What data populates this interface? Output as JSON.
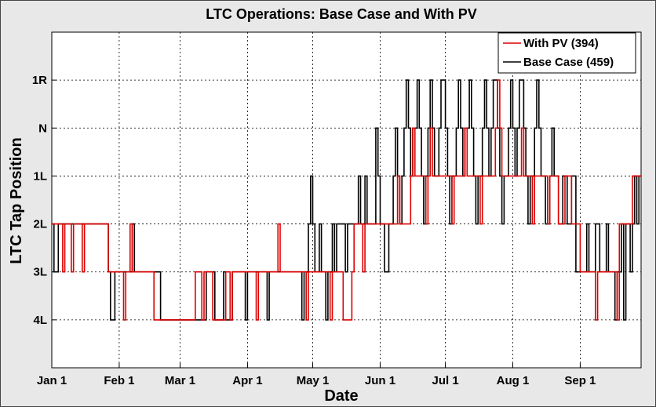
{
  "chart_data": {
    "type": "line",
    "title": "LTC Operations: Base Case and With PV",
    "xlabel": "Date",
    "ylabel": "LTC Tap Position",
    "x_tick_labels": [
      "Jan 1",
      "Feb 1",
      "Mar 1",
      "Apr 1",
      "May 1",
      "Jun 1",
      "Jul 1",
      "Aug 1",
      "Sep 1"
    ],
    "y_tick_labels": [
      "4L",
      "3L",
      "2L",
      "1L",
      "N",
      "1R"
    ],
    "y_levels": [
      -4,
      -3,
      -2,
      -1,
      0,
      1
    ],
    "ylim": [
      -5,
      2
    ],
    "xlim": [
      "Jan 1",
      "Sep 29"
    ],
    "grid": true,
    "legend_position": "top-right",
    "colors": {
      "with_pv": "#e00000",
      "base_case": "#000000"
    },
    "series": [
      {
        "name": "With PV (394)",
        "color": "#e00000",
        "steps": [
          [
            "Jan 1",
            -2
          ],
          [
            "Jan 6",
            -3
          ],
          [
            "Jan 7",
            -2
          ],
          [
            "Jan 10",
            -3
          ],
          [
            "Jan 11",
            -2
          ],
          [
            "Jan 15",
            -3
          ],
          [
            "Jan 16",
            -2
          ],
          [
            "Jan 27",
            -3
          ],
          [
            "Feb 3",
            -4
          ],
          [
            "Feb 4",
            -3
          ],
          [
            "Feb 6",
            -2
          ],
          [
            "Feb 7",
            -3
          ],
          [
            "Feb 14",
            -3
          ],
          [
            "Feb 17",
            -4
          ],
          [
            "Mar 8",
            -3
          ],
          [
            "Mar 11",
            -4
          ],
          [
            "Mar 12",
            -3
          ],
          [
            "Mar 16",
            -4
          ],
          [
            "Mar 22",
            -3
          ],
          [
            "Mar 24",
            -4
          ],
          [
            "Mar 25",
            -3
          ],
          [
            "Mar 31",
            -3
          ],
          [
            "Apr 5",
            -4
          ],
          [
            "Apr 6",
            -3
          ],
          [
            "Apr 14",
            -3
          ],
          [
            "Apr 15",
            -2
          ],
          [
            "Apr 16",
            -3
          ],
          [
            "Apr 28",
            -4
          ],
          [
            "Apr 29",
            -3
          ],
          [
            "May 3",
            -3
          ],
          [
            "May 9",
            -4
          ],
          [
            "May 10",
            -3
          ],
          [
            "May 15",
            -4
          ],
          [
            "May 19",
            -3
          ],
          [
            "May 20",
            -2
          ],
          [
            "May 24",
            -3
          ],
          [
            "May 25",
            -2
          ],
          [
            "Jun 1",
            -2
          ],
          [
            "Jun 9",
            -1
          ],
          [
            "Jun 10",
            -2
          ],
          [
            "Jun 15",
            -1
          ],
          [
            "Jun 16",
            0
          ],
          [
            "Jun 17",
            -1
          ],
          [
            "Jun 22",
            -2
          ],
          [
            "Jun 23",
            -1
          ],
          [
            "Jun 24",
            0
          ],
          [
            "Jun 25",
            -1
          ],
          [
            "Jul 1",
            -1
          ],
          [
            "Jul 4",
            -2
          ],
          [
            "Jul 5",
            -1
          ],
          [
            "Jul 10",
            0
          ],
          [
            "Jul 11",
            -1
          ],
          [
            "Jul 17",
            -2
          ],
          [
            "Jul 18",
            -1
          ],
          [
            "Jul 24",
            0
          ],
          [
            "Jul 25",
            1
          ],
          [
            "Jul 26",
            0
          ],
          [
            "Jul 27",
            -1
          ],
          [
            "Aug 1",
            -1
          ],
          [
            "Aug 5",
            0
          ],
          [
            "Aug 6",
            -1
          ],
          [
            "Aug 10",
            -2
          ],
          [
            "Aug 11",
            -1
          ],
          [
            "Aug 17",
            -2
          ],
          [
            "Aug 18",
            -1
          ],
          [
            "Aug 22",
            -2
          ],
          [
            "Aug 25",
            -1
          ],
          [
            "Aug 28",
            -2
          ],
          [
            "Sep 1",
            -3
          ],
          [
            "Sep 8",
            -4
          ],
          [
            "Sep 9",
            -3
          ],
          [
            "Sep 14",
            -3
          ],
          [
            "Sep 18",
            -4
          ],
          [
            "Sep 19",
            -2
          ],
          [
            "Sep 25",
            -1
          ],
          [
            "Sep 29",
            -1
          ]
        ]
      },
      {
        "name": "Base Case (459)",
        "color": "#000000",
        "steps": [
          [
            "Jan 1",
            -2
          ],
          [
            "Jan 2",
            -3
          ],
          [
            "Jan 4",
            -2
          ],
          [
            "Jan 27",
            -3
          ],
          [
            "Jan 28",
            -4
          ],
          [
            "Jan 30",
            -3
          ],
          [
            "Feb 5",
            -3
          ],
          [
            "Feb 7",
            -2
          ],
          [
            "Feb 8",
            -3
          ],
          [
            "Feb 20",
            -4
          ],
          [
            "Mar 13",
            -3
          ],
          [
            "Mar 16",
            -3
          ],
          [
            "Mar 17",
            -4
          ],
          [
            "Mar 21",
            -3
          ],
          [
            "Mar 22",
            -4
          ],
          [
            "Mar 25",
            -3
          ],
          [
            "Mar 29",
            -3
          ],
          [
            "Mar 31",
            -4
          ],
          [
            "Apr 1",
            -3
          ],
          [
            "Apr 9",
            -3
          ],
          [
            "Apr 10",
            -4
          ],
          [
            "Apr 11",
            -3
          ],
          [
            "Apr 20",
            -3
          ],
          [
            "Apr 25",
            -3
          ],
          [
            "Apr 26",
            -4
          ],
          [
            "Apr 27",
            -3
          ],
          [
            "Apr 29",
            -2
          ],
          [
            "Apr 30",
            -1
          ],
          [
            "May 1",
            -2
          ],
          [
            "May 2",
            -3
          ],
          [
            "May 4",
            -2
          ],
          [
            "May 5",
            -3
          ],
          [
            "May 7",
            -4
          ],
          [
            "May 8",
            -3
          ],
          [
            "May 10",
            -2
          ],
          [
            "May 11",
            -3
          ],
          [
            "May 12",
            -2
          ],
          [
            "May 16",
            -3
          ],
          [
            "May 17",
            -2
          ],
          [
            "May 22",
            -1
          ],
          [
            "May 23",
            -2
          ],
          [
            "May 25",
            -1
          ],
          [
            "May 26",
            -2
          ],
          [
            "May 30",
            0
          ],
          [
            "May 31",
            -1
          ],
          [
            "Jun 1",
            -2
          ],
          [
            "Jun 3",
            -3
          ],
          [
            "Jun 5",
            -2
          ],
          [
            "Jun 7",
            -1
          ],
          [
            "Jun 8",
            0
          ],
          [
            "Jun 9",
            -1
          ],
          [
            "Jun 10",
            -2
          ],
          [
            "Jun 11",
            -1
          ],
          [
            "Jun 12",
            0
          ],
          [
            "Jun 13",
            1
          ],
          [
            "Jun 14",
            0
          ],
          [
            "Jun 15",
            -1
          ],
          [
            "Jun 16",
            0
          ],
          [
            "Jun 18",
            1
          ],
          [
            "Jun 19",
            0
          ],
          [
            "Jun 20",
            -1
          ],
          [
            "Jun 21",
            -2
          ],
          [
            "Jun 22",
            -1
          ],
          [
            "Jun 23",
            0
          ],
          [
            "Jun 24",
            1
          ],
          [
            "Jun 25",
            0
          ],
          [
            "Jun 26",
            -1
          ],
          [
            "Jun 28",
            0
          ],
          [
            "Jun 29",
            1
          ],
          [
            "Jul 1",
            0
          ],
          [
            "Jul 2",
            -1
          ],
          [
            "Jul 3",
            -2
          ],
          [
            "Jul 4",
            -1
          ],
          [
            "Jul 6",
            0
          ],
          [
            "Jul 7",
            1
          ],
          [
            "Jul 8",
            0
          ],
          [
            "Jul 9",
            -1
          ],
          [
            "Jul 10",
            0
          ],
          [
            "Jul 12",
            1
          ],
          [
            "Jul 13",
            0
          ],
          [
            "Jul 14",
            -1
          ],
          [
            "Jul 15",
            -2
          ],
          [
            "Jul 16",
            -1
          ],
          [
            "Jul 18",
            0
          ],
          [
            "Jul 19",
            1
          ],
          [
            "Jul 20",
            0
          ],
          [
            "Jul 21",
            -1
          ],
          [
            "Jul 22",
            0
          ],
          [
            "Jul 23",
            1
          ],
          [
            "Jul 25",
            0
          ],
          [
            "Jul 26",
            -1
          ],
          [
            "Jul 27",
            -2
          ],
          [
            "Jul 28",
            -1
          ],
          [
            "Jul 30",
            0
          ],
          [
            "Jul 31",
            1
          ],
          [
            "Aug 1",
            0
          ],
          [
            "Aug 2",
            -1
          ],
          [
            "Aug 3",
            0
          ],
          [
            "Aug 4",
            1
          ],
          [
            "Aug 6",
            0
          ],
          [
            "Aug 7",
            -1
          ],
          [
            "Aug 8",
            -2
          ],
          [
            "Aug 9",
            -1
          ],
          [
            "Aug 11",
            0
          ],
          [
            "Aug 12",
            1
          ],
          [
            "Aug 13",
            0
          ],
          [
            "Aug 14",
            -1
          ],
          [
            "Aug 16",
            -2
          ],
          [
            "Aug 18",
            -1
          ],
          [
            "Aug 19",
            0
          ],
          [
            "Aug 20",
            -1
          ],
          [
            "Aug 22",
            -2
          ],
          [
            "Aug 24",
            -1
          ],
          [
            "Aug 26",
            -2
          ],
          [
            "Aug 28",
            -1
          ],
          [
            "Aug 30",
            -3
          ],
          [
            "Sep 2",
            -3
          ],
          [
            "Sep 4",
            -2
          ],
          [
            "Sep 5",
            -3
          ],
          [
            "Sep 8",
            -2
          ],
          [
            "Sep 10",
            -3
          ],
          [
            "Sep 13",
            -2
          ],
          [
            "Sep 14",
            -3
          ],
          [
            "Sep 17",
            -4
          ],
          [
            "Sep 18",
            -3
          ],
          [
            "Sep 20",
            -2
          ],
          [
            "Sep 21",
            -4
          ],
          [
            "Sep 22",
            -2
          ],
          [
            "Sep 24",
            -3
          ],
          [
            "Sep 25",
            -2
          ],
          [
            "Sep 26",
            -1
          ],
          [
            "Sep 27",
            -2
          ],
          [
            "Sep 28",
            -1
          ],
          [
            "Sep 29",
            -1
          ]
        ]
      }
    ]
  }
}
